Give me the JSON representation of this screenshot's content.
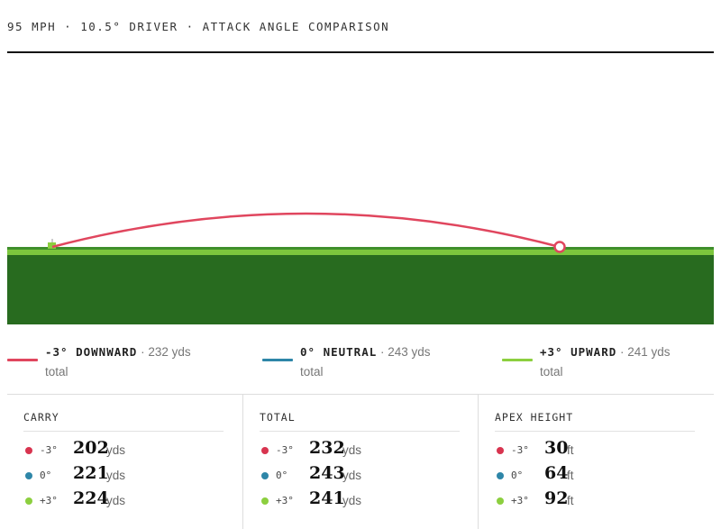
{
  "header": {
    "title": "95 MPH · 10.5° DRIVER · ATTACK ANGLE COMPARISON"
  },
  "colors": {
    "downward": "#e0465e",
    "neutral": "#2e86a8",
    "upward": "#8ccf3f",
    "turf_dark": "#286b1f",
    "turf_light": "#7cc63d"
  },
  "legend": [
    {
      "name": "-3° DOWNWARD",
      "detail": "· 232 yds",
      "suffix": "total"
    },
    {
      "name": "0° NEUTRAL",
      "detail": "· 243 yds",
      "suffix": "total"
    },
    {
      "name": "+3° UPWARD",
      "detail": "· 241 yds",
      "suffix": "total"
    }
  ],
  "trajectory": {
    "series": "-3° DOWNWARD",
    "total_yds": 232,
    "apex_ft": 30
  },
  "stats": [
    {
      "title": "CARRY",
      "rows": [
        {
          "angle": "-3°",
          "value": "202",
          "unit": "yds"
        },
        {
          "angle": "0°",
          "value": "221",
          "unit": "yds"
        },
        {
          "angle": "+3°",
          "value": "224",
          "unit": "yds"
        }
      ]
    },
    {
      "title": "TOTAL",
      "rows": [
        {
          "angle": "-3°",
          "value": "232",
          "unit": "yds"
        },
        {
          "angle": "0°",
          "value": "243",
          "unit": "yds"
        },
        {
          "angle": "+3°",
          "value": "241",
          "unit": "yds"
        }
      ]
    },
    {
      "title": "APEX HEIGHT",
      "rows": [
        {
          "angle": "-3°",
          "value": "30",
          "unit": "ft"
        },
        {
          "angle": "0°",
          "value": "64",
          "unit": "ft"
        },
        {
          "angle": "+3°",
          "value": "92",
          "unit": "ft"
        }
      ]
    }
  ]
}
